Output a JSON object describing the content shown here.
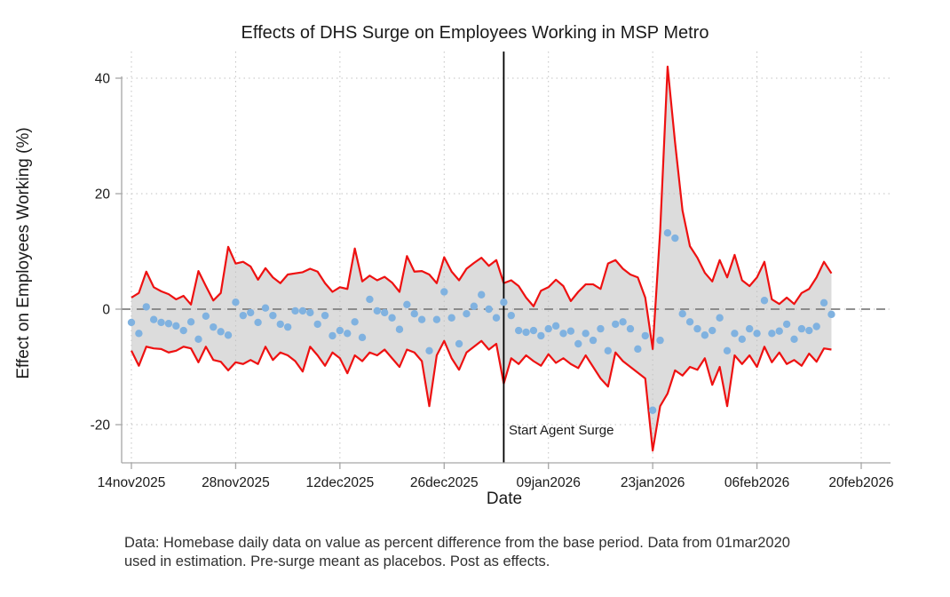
{
  "title": "Effects of DHS Surge on Employees Working in MSP Metro",
  "y_axis": {
    "label": "Effect on Employees Working (%)",
    "ticks": [
      40,
      20,
      0,
      -20
    ]
  },
  "x_axis": {
    "label": "Date",
    "ticks": [
      "14nov2025",
      "28nov2025",
      "12dec2025",
      "26dec2025",
      "09jan2026",
      "23jan2026",
      "06feb2026",
      "20feb2026"
    ]
  },
  "annotations": {
    "surge_label": "Start Agent Surge"
  },
  "caption": {
    "line1": "Data: Homebase daily data on value as percent difference from the base period. Data from 01mar2020",
    "line2": "used in estimation. Pre-surge meant as placebos. Post as effects."
  },
  "colors": {
    "point": "#80b2e0",
    "ci_line": "#ee1111",
    "band_fill": "#dcdcdc",
    "zero_line": "#808080",
    "grid": "#c2c2c2",
    "axis": "#a6a6a6",
    "event_line": "#000000",
    "text": "#1a1a1a"
  },
  "chart_data": {
    "type": "scatter",
    "title": "Effects of DHS Surge on Employees Working in MSP Metro",
    "xlabel": "Date",
    "ylabel": "Effect on Employees Working (%)",
    "ylim": [
      -26,
      44
    ],
    "grid": "dotted",
    "legend": "none",
    "x_unit": "day",
    "x_start": "14nov2025",
    "x_end": "16feb2026",
    "n_points": 95,
    "x_tick_labels": [
      "14nov2025",
      "28nov2025",
      "12dec2025",
      "26dec2025",
      "09jan2026",
      "23jan2026",
      "06feb2026",
      "20feb2026"
    ],
    "x_tick_days": [
      0,
      14,
      28,
      42,
      56,
      70,
      84,
      98
    ],
    "y_ticks": [
      40,
      20,
      0,
      -20
    ],
    "zero_reference_line": 0,
    "event_line": {
      "label": "Start Agent Surge",
      "day": 50,
      "date": "03jan2026"
    },
    "band_fill": "#dcdcdc",
    "series": [
      {
        "name": "Point estimate",
        "type": "scatter",
        "color": "#80b2e0",
        "values": [
          -2.3,
          -4.2,
          0.4,
          -1.8,
          -2.3,
          -2.5,
          -2.9,
          -3.7,
          -2.2,
          -5.2,
          -1.2,
          -3.1,
          -3.9,
          -4.5,
          1.2,
          -1.1,
          -0.6,
          -2.3,
          0.2,
          -1.1,
          -2.6,
          -3.1,
          -0.3,
          -0.3,
          -0.6,
          -2.6,
          -1.1,
          -4.6,
          -3.7,
          -4.2,
          -2.2,
          -4.9,
          1.7,
          -0.3,
          -0.6,
          -1.5,
          -3.5,
          0.8,
          -0.8,
          -1.8,
          -7.2,
          -1.8,
          3.0,
          -1.5,
          -6.0,
          -0.8,
          0.5,
          2.5,
          0.0,
          -1.5,
          1.2,
          -1.1,
          -3.7,
          -4.0,
          -3.7,
          -4.6,
          -3.4,
          -2.9,
          -4.2,
          -3.8,
          -6.0,
          -4.2,
          -5.4,
          -3.4,
          -7.2,
          -2.6,
          -2.2,
          -3.4,
          -6.9,
          -4.6,
          -17.5,
          -5.4,
          13.2,
          12.3,
          -0.8,
          -2.2,
          -3.4,
          -4.5,
          -3.7,
          -1.5,
          -7.2,
          -4.2,
          -5.2,
          -3.4,
          -4.2,
          1.5,
          -4.2,
          -3.8,
          -2.6,
          -5.2,
          -3.4,
          -3.7,
          -3.0,
          1.1,
          -0.9
        ]
      },
      {
        "name": "95% CI upper",
        "type": "line",
        "color": "#ee1111",
        "values": [
          2.0,
          2.8,
          6.5,
          3.8,
          3.1,
          2.6,
          1.7,
          2.3,
          0.8,
          6.6,
          4.0,
          1.5,
          2.8,
          10.8,
          7.9,
          8.2,
          7.4,
          5.1,
          7.1,
          5.5,
          4.5,
          6.0,
          6.2,
          6.4,
          7.0,
          6.5,
          4.5,
          3.0,
          3.8,
          3.5,
          10.5,
          4.8,
          5.8,
          5.0,
          5.6,
          4.6,
          3.0,
          9.2,
          6.5,
          6.6,
          6.0,
          4.5,
          9.0,
          6.5,
          5.0,
          7.0,
          8.0,
          8.9,
          7.5,
          8.5,
          4.5,
          5.0,
          4.0,
          2.0,
          0.5,
          3.2,
          3.8,
          5.1,
          4.0,
          1.4,
          3.0,
          4.3,
          4.3,
          3.5,
          7.9,
          8.5,
          7.0,
          6.0,
          5.5,
          2.0,
          -6.9,
          13.5,
          42.0,
          28.9,
          17.1,
          10.9,
          8.9,
          6.3,
          4.8,
          8.5,
          5.5,
          9.4,
          5.0,
          4.0,
          5.5,
          8.2,
          1.7,
          0.9,
          2.0,
          0.9,
          2.8,
          3.5,
          5.5,
          8.2,
          6.2
        ]
      },
      {
        "name": "95% CI lower",
        "type": "line",
        "color": "#ee1111",
        "values": [
          -7.2,
          -9.8,
          -6.5,
          -6.8,
          -6.9,
          -7.5,
          -7.2,
          -6.5,
          -6.8,
          -9.2,
          -6.5,
          -8.8,
          -9.1,
          -10.6,
          -9.2,
          -9.5,
          -8.8,
          -9.5,
          -6.5,
          -8.8,
          -7.5,
          -8.0,
          -9.0,
          -10.8,
          -6.5,
          -8.0,
          -9.8,
          -7.5,
          -8.5,
          -11.1,
          -8.0,
          -9.0,
          -7.5,
          -8.0,
          -7.0,
          -8.5,
          -10.0,
          -7.0,
          -7.5,
          -9.0,
          -16.8,
          -8.0,
          -5.5,
          -8.5,
          -10.5,
          -7.5,
          -6.5,
          -5.5,
          -7.0,
          -6.0,
          -12.9,
          -8.5,
          -9.5,
          -8.0,
          -9.0,
          -9.8,
          -7.8,
          -9.3,
          -8.5,
          -9.5,
          -10.2,
          -8.0,
          -10.0,
          -12.0,
          -13.4,
          -7.5,
          -9.0,
          -10.0,
          -11.0,
          -12.0,
          -24.5,
          -16.8,
          -14.6,
          -10.6,
          -11.5,
          -10.0,
          -10.5,
          -8.5,
          -13.1,
          -10.0,
          -16.8,
          -8.0,
          -9.5,
          -8.0,
          -10.0,
          -6.5,
          -9.2,
          -7.5,
          -9.5,
          -8.8,
          -9.8,
          -7.7,
          -9.1,
          -6.8,
          -7.0
        ]
      }
    ]
  }
}
